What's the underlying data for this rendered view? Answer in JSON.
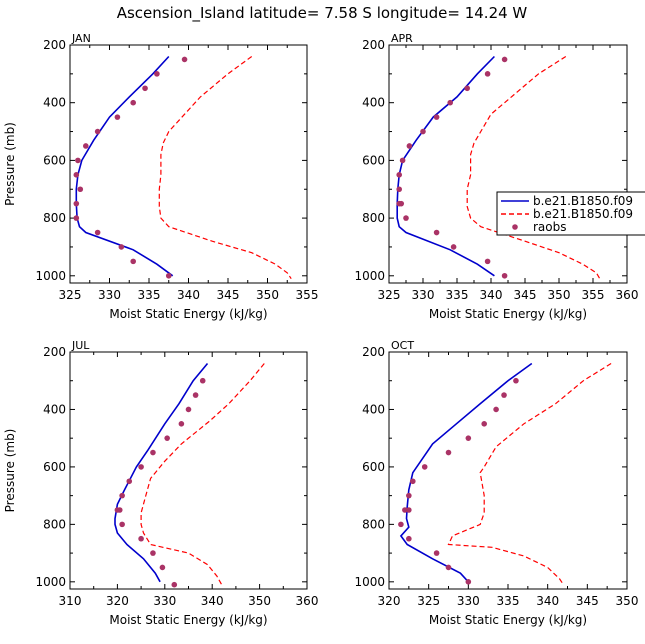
{
  "figure": {
    "title": "Ascension_Island  latitude= 7.58 S longitude= 14.24 W"
  },
  "legend": {
    "entries": [
      {
        "label": "b.e21.B1850.f09",
        "color": "#0000cc",
        "style": "solid"
      },
      {
        "label": "b.e21.B1850.f09",
        "color": "#ff0000",
        "style": "dashed"
      },
      {
        "label": "raobs",
        "color": "#aa3366",
        "style": "marker"
      }
    ]
  },
  "chart_data": [
    {
      "type": "line",
      "panel": "JAN",
      "xlabel": "Moist Static Energy (kJ/kg)",
      "ylabel": "Pressure (mb)",
      "xlim": [
        325,
        355
      ],
      "ylim": [
        200,
        1025
      ],
      "y_inverted": true,
      "xticks": [
        325,
        330,
        335,
        340,
        345,
        350,
        355
      ],
      "yticks": [
        200,
        400,
        600,
        800,
        1000
      ],
      "series": [
        {
          "name": "b.e21.B1850.f09",
          "color": "#0000cc",
          "style": "solid",
          "x": [
            337.5,
            335.5,
            332.5,
            330,
            328,
            326.5,
            326,
            325.8,
            325.8,
            325.9,
            326.2,
            327,
            333,
            336,
            338
          ],
          "y": [
            240,
            300,
            380,
            450,
            530,
            600,
            650,
            700,
            750,
            800,
            830,
            850,
            910,
            960,
            1000
          ]
        },
        {
          "name": "b.e21.B1850.f09",
          "color": "#ff0000",
          "style": "dashed",
          "x": [
            348,
            345,
            341.5,
            339.5,
            337.5,
            336.8,
            336.5,
            336.5,
            336.3,
            336.3,
            336.5,
            337.5,
            343,
            348,
            351,
            352.5,
            353
          ],
          "y": [
            240,
            300,
            380,
            440,
            500,
            540,
            580,
            650,
            700,
            760,
            800,
            830,
            880,
            920,
            960,
            990,
            1010
          ]
        },
        {
          "name": "raobs",
          "color": "#aa3366",
          "style": "marker",
          "x": [
            339.5,
            336,
            334.5,
            333,
            331,
            328.5,
            327,
            326,
            325.8,
            326.3,
            325.8,
            325.8,
            328.5,
            331.5,
            333,
            337.5
          ],
          "y": [
            250,
            300,
            350,
            400,
            450,
            500,
            550,
            600,
            650,
            700,
            750,
            800,
            850,
            900,
            950,
            1000
          ]
        }
      ]
    },
    {
      "type": "line",
      "panel": "APR",
      "xlabel": "Moist Static Energy (kJ/kg)",
      "ylabel": "",
      "xlim": [
        325,
        360
      ],
      "ylim": [
        200,
        1025
      ],
      "y_inverted": true,
      "xticks": [
        325,
        330,
        335,
        340,
        345,
        350,
        355,
        360
      ],
      "yticks": [
        200,
        400,
        600,
        800,
        1000
      ],
      "series": [
        {
          "name": "b.e21.B1850.f09",
          "color": "#0000cc",
          "style": "solid",
          "x": [
            340.5,
            338,
            335,
            331.5,
            329,
            327,
            326.5,
            326.3,
            326.2,
            326.2,
            326.5,
            327.5,
            334,
            338,
            340.5
          ],
          "y": [
            240,
            300,
            380,
            450,
            530,
            600,
            650,
            700,
            750,
            800,
            830,
            850,
            910,
            960,
            1000
          ]
        },
        {
          "name": "b.e21.B1850.f09",
          "color": "#ff0000",
          "style": "dashed",
          "x": [
            351,
            347,
            343,
            340,
            338.5,
            337.5,
            337,
            337,
            336.5,
            336.5,
            337,
            338.5,
            345,
            350,
            353.5,
            355.5,
            356
          ],
          "y": [
            240,
            300,
            380,
            440,
            500,
            540,
            580,
            650,
            700,
            760,
            800,
            830,
            880,
            920,
            960,
            990,
            1010
          ]
        },
        {
          "name": "raobs",
          "color": "#aa3366",
          "style": "marker",
          "x": [
            342,
            339.5,
            336.5,
            334,
            332,
            330,
            328,
            327,
            326.5,
            326.5,
            326.5,
            326.8,
            327.5,
            332,
            334.5,
            339.5,
            342
          ],
          "y": [
            250,
            300,
            350,
            400,
            450,
            500,
            550,
            600,
            650,
            700,
            750,
            750,
            800,
            850,
            900,
            950,
            1000
          ]
        }
      ]
    },
    {
      "type": "line",
      "panel": "JUL",
      "xlabel": "Moist Static Energy (kJ/kg)",
      "ylabel": "Pressure (mb)",
      "xlim": [
        310,
        360
      ],
      "ylim": [
        200,
        1025
      ],
      "y_inverted": true,
      "xticks": [
        310,
        320,
        330,
        340,
        350,
        360
      ],
      "yticks": [
        200,
        400,
        600,
        800,
        1000
      ],
      "series": [
        {
          "name": "b.e21.B1850.f09",
          "color": "#0000cc",
          "style": "solid",
          "x": [
            339,
            336,
            333,
            330,
            326.5,
            324,
            321.5,
            320,
            319.5,
            319.5,
            320,
            322,
            325.5,
            328,
            329
          ],
          "y": [
            240,
            300,
            380,
            450,
            540,
            600,
            680,
            730,
            780,
            800,
            830,
            870,
            920,
            970,
            1000
          ]
        },
        {
          "name": "b.e21.B1850.f09",
          "color": "#ff0000",
          "style": "dashed",
          "x": [
            351,
            348,
            343.5,
            339.5,
            333.5,
            330,
            327,
            326,
            325,
            325,
            325.5,
            327,
            335,
            339,
            341,
            342
          ],
          "y": [
            240,
            300,
            380,
            440,
            520,
            580,
            640,
            700,
            760,
            800,
            830,
            870,
            900,
            940,
            980,
            1010
          ]
        },
        {
          "name": "raobs",
          "color": "#aa3366",
          "style": "marker",
          "x": [
            338,
            336.5,
            335,
            333.5,
            330.5,
            327.5,
            325,
            322.5,
            321,
            320.5,
            320,
            321,
            325,
            327.5,
            329.5,
            332
          ],
          "y": [
            300,
            350,
            400,
            450,
            500,
            550,
            600,
            650,
            700,
            750,
            750,
            800,
            850,
            900,
            950,
            1010
          ]
        }
      ]
    },
    {
      "type": "line",
      "panel": "OCT",
      "xlabel": "Moist Static Energy (kJ/kg)",
      "ylabel": "",
      "xlim": [
        320,
        350
      ],
      "ylim": [
        200,
        1025
      ],
      "y_inverted": true,
      "xticks": [
        320,
        325,
        330,
        335,
        340,
        345,
        350
      ],
      "yticks": [
        200,
        400,
        600,
        800,
        1000
      ],
      "series": [
        {
          "name": "b.e21.B1850.f09",
          "color": "#0000cc",
          "style": "solid",
          "x": [
            338,
            335,
            331.5,
            328.5,
            325.5,
            323,
            322.5,
            322.3,
            322.2,
            322.5,
            321.5,
            322.3,
            325.5,
            329,
            330
          ],
          "y": [
            240,
            300,
            380,
            450,
            520,
            620,
            680,
            740,
            780,
            810,
            840,
            870,
            920,
            970,
            1000
          ]
        },
        {
          "name": "b.e21.B1850.f09",
          "color": "#ff0000",
          "style": "dashed",
          "x": [
            348,
            344.5,
            341,
            337,
            333.5,
            332,
            331.5,
            332,
            332,
            331.5,
            328,
            327.5,
            333,
            337,
            340,
            341.5,
            342
          ],
          "y": [
            240,
            300,
            380,
            450,
            530,
            600,
            620,
            700,
            760,
            800,
            840,
            870,
            880,
            910,
            950,
            990,
            1010
          ]
        },
        {
          "name": "raobs",
          "color": "#aa3366",
          "style": "marker",
          "x": [
            336,
            334.5,
            333.5,
            332,
            330,
            327.5,
            324.5,
            323,
            322.5,
            322.5,
            322,
            321.5,
            322.5,
            326,
            327.5,
            330
          ],
          "y": [
            300,
            350,
            400,
            450,
            500,
            550,
            600,
            650,
            700,
            750,
            750,
            800,
            850,
            900,
            950,
            1000
          ]
        }
      ]
    }
  ]
}
